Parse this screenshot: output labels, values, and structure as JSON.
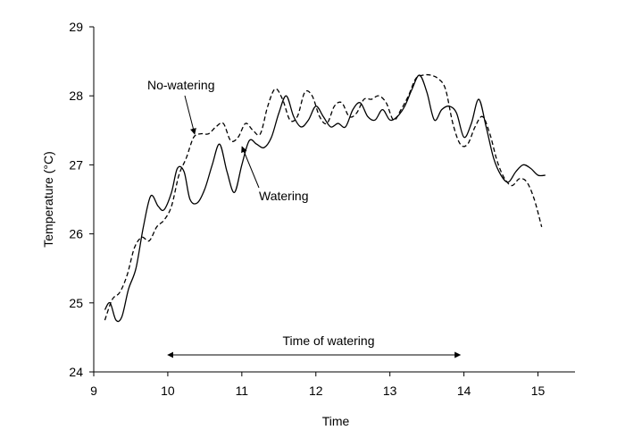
{
  "chart_data": {
    "type": "line",
    "xlabel": "Time",
    "ylabel": "Temperature (°C)",
    "xlim": [
      9,
      15.5
    ],
    "ylim": [
      24,
      29
    ],
    "x_ticks": [
      9,
      10,
      11,
      12,
      13,
      14,
      15
    ],
    "y_ticks": [
      24,
      25,
      26,
      27,
      28,
      29
    ],
    "grid": false,
    "series": [
      {
        "name": "No-watering",
        "style": "dashed",
        "points": [
          [
            9.15,
            24.75
          ],
          [
            9.25,
            25.05
          ],
          [
            9.35,
            25.15
          ],
          [
            9.45,
            25.4
          ],
          [
            9.55,
            25.8
          ],
          [
            9.65,
            25.95
          ],
          [
            9.75,
            25.9
          ],
          [
            9.85,
            26.1
          ],
          [
            9.95,
            26.2
          ],
          [
            10.05,
            26.4
          ],
          [
            10.15,
            26.85
          ],
          [
            10.25,
            27.1
          ],
          [
            10.35,
            27.4
          ],
          [
            10.45,
            27.45
          ],
          [
            10.55,
            27.45
          ],
          [
            10.65,
            27.55
          ],
          [
            10.75,
            27.6
          ],
          [
            10.85,
            27.35
          ],
          [
            10.95,
            27.4
          ],
          [
            11.05,
            27.6
          ],
          [
            11.15,
            27.5
          ],
          [
            11.25,
            27.45
          ],
          [
            11.35,
            27.85
          ],
          [
            11.45,
            28.1
          ],
          [
            11.55,
            27.95
          ],
          [
            11.65,
            27.65
          ],
          [
            11.75,
            27.7
          ],
          [
            11.85,
            28.05
          ],
          [
            11.95,
            28.0
          ],
          [
            12.05,
            27.7
          ],
          [
            12.15,
            27.6
          ],
          [
            12.25,
            27.85
          ],
          [
            12.35,
            27.9
          ],
          [
            12.45,
            27.7
          ],
          [
            12.55,
            27.75
          ],
          [
            12.65,
            27.95
          ],
          [
            12.75,
            27.95
          ],
          [
            12.85,
            28.0
          ],
          [
            12.95,
            27.9
          ],
          [
            13.05,
            27.65
          ],
          [
            13.15,
            27.8
          ],
          [
            13.25,
            28.0
          ],
          [
            13.35,
            28.25
          ],
          [
            13.45,
            28.3
          ],
          [
            13.55,
            28.3
          ],
          [
            13.65,
            28.25
          ],
          [
            13.75,
            28.1
          ],
          [
            13.85,
            27.6
          ],
          [
            13.95,
            27.3
          ],
          [
            14.05,
            27.3
          ],
          [
            14.15,
            27.55
          ],
          [
            14.25,
            27.7
          ],
          [
            14.35,
            27.45
          ],
          [
            14.45,
            27.05
          ],
          [
            14.55,
            26.8
          ],
          [
            14.65,
            26.7
          ],
          [
            14.75,
            26.8
          ],
          [
            14.85,
            26.75
          ],
          [
            14.95,
            26.5
          ],
          [
            15.05,
            26.1
          ]
        ]
      },
      {
        "name": "Watering",
        "style": "solid",
        "points": [
          [
            9.15,
            24.9
          ],
          [
            9.22,
            25.0
          ],
          [
            9.3,
            24.75
          ],
          [
            9.38,
            24.8
          ],
          [
            9.47,
            25.2
          ],
          [
            9.57,
            25.5
          ],
          [
            9.67,
            26.1
          ],
          [
            9.77,
            26.55
          ],
          [
            9.87,
            26.4
          ],
          [
            9.95,
            26.35
          ],
          [
            10.05,
            26.6
          ],
          [
            10.13,
            26.95
          ],
          [
            10.22,
            26.9
          ],
          [
            10.3,
            26.5
          ],
          [
            10.4,
            26.45
          ],
          [
            10.5,
            26.65
          ],
          [
            10.6,
            27.0
          ],
          [
            10.7,
            27.3
          ],
          [
            10.8,
            26.9
          ],
          [
            10.9,
            26.6
          ],
          [
            11.0,
            27.0
          ],
          [
            11.1,
            27.35
          ],
          [
            11.2,
            27.3
          ],
          [
            11.3,
            27.25
          ],
          [
            11.4,
            27.4
          ],
          [
            11.5,
            27.75
          ],
          [
            11.6,
            28.0
          ],
          [
            11.7,
            27.7
          ],
          [
            11.8,
            27.55
          ],
          [
            11.9,
            27.65
          ],
          [
            12.0,
            27.85
          ],
          [
            12.1,
            27.7
          ],
          [
            12.2,
            27.55
          ],
          [
            12.3,
            27.6
          ],
          [
            12.4,
            27.55
          ],
          [
            12.5,
            27.8
          ],
          [
            12.6,
            27.9
          ],
          [
            12.7,
            27.7
          ],
          [
            12.8,
            27.65
          ],
          [
            12.9,
            27.8
          ],
          [
            13.0,
            27.65
          ],
          [
            13.1,
            27.7
          ],
          [
            13.2,
            27.85
          ],
          [
            13.3,
            28.1
          ],
          [
            13.4,
            28.3
          ],
          [
            13.5,
            28.05
          ],
          [
            13.6,
            27.65
          ],
          [
            13.7,
            27.8
          ],
          [
            13.8,
            27.85
          ],
          [
            13.9,
            27.75
          ],
          [
            14.0,
            27.4
          ],
          [
            14.1,
            27.6
          ],
          [
            14.2,
            27.95
          ],
          [
            14.3,
            27.55
          ],
          [
            14.4,
            27.1
          ],
          [
            14.5,
            26.85
          ],
          [
            14.6,
            26.75
          ],
          [
            14.7,
            26.9
          ],
          [
            14.8,
            27.0
          ],
          [
            14.9,
            26.95
          ],
          [
            15.0,
            26.85
          ],
          [
            15.1,
            26.85
          ]
        ]
      }
    ],
    "annotations": {
      "no_watering_label": "No-watering",
      "watering_label": "Watering",
      "time_of_watering_label": "Time of watering",
      "time_of_watering_range": [
        10.0,
        13.95
      ]
    }
  }
}
